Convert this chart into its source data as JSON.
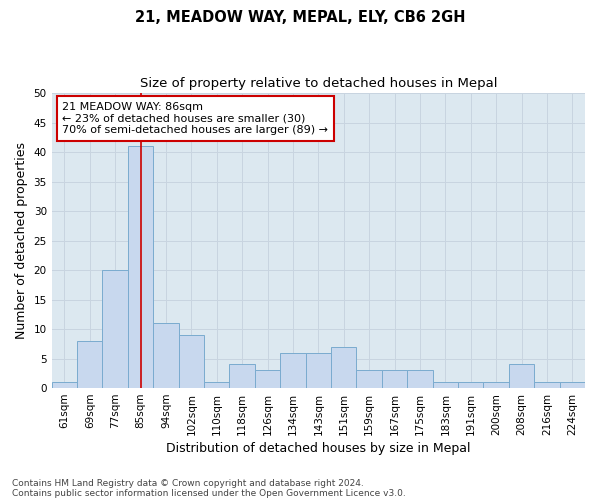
{
  "title1": "21, MEADOW WAY, MEPAL, ELY, CB6 2GH",
  "title2": "Size of property relative to detached houses in Mepal",
  "xlabel": "Distribution of detached houses by size in Mepal",
  "ylabel": "Number of detached properties",
  "categories": [
    "61sqm",
    "69sqm",
    "77sqm",
    "85sqm",
    "94sqm",
    "102sqm",
    "110sqm",
    "118sqm",
    "126sqm",
    "134sqm",
    "143sqm",
    "151sqm",
    "159sqm",
    "167sqm",
    "175sqm",
    "183sqm",
    "191sqm",
    "200sqm",
    "208sqm",
    "216sqm",
    "224sqm"
  ],
  "values": [
    1,
    8,
    20,
    41,
    11,
    9,
    1,
    4,
    3,
    6,
    6,
    7,
    3,
    3,
    3,
    1,
    1,
    1,
    4,
    1,
    1
  ],
  "bar_color": "#c8d8ee",
  "bar_edge_color": "#7aabcf",
  "red_line_x": 3,
  "annotation_line1": "21 MEADOW WAY: 86sqm",
  "annotation_line2": "← 23% of detached houses are smaller (30)",
  "annotation_line3": "70% of semi-detached houses are larger (89) →",
  "annotation_box_color": "#ffffff",
  "annotation_box_edge_color": "#cc0000",
  "red_line_color": "#cc0000",
  "ylim": [
    0,
    50
  ],
  "yticks": [
    0,
    5,
    10,
    15,
    20,
    25,
    30,
    35,
    40,
    45,
    50
  ],
  "grid_color": "#c8d4e0",
  "bg_color": "#dce8f0",
  "footer1": "Contains HM Land Registry data © Crown copyright and database right 2024.",
  "footer2": "Contains public sector information licensed under the Open Government Licence v3.0.",
  "title1_fontsize": 10.5,
  "title2_fontsize": 9.5,
  "axis_label_fontsize": 9,
  "tick_fontsize": 7.5,
  "annotation_fontsize": 8,
  "footer_fontsize": 6.5
}
